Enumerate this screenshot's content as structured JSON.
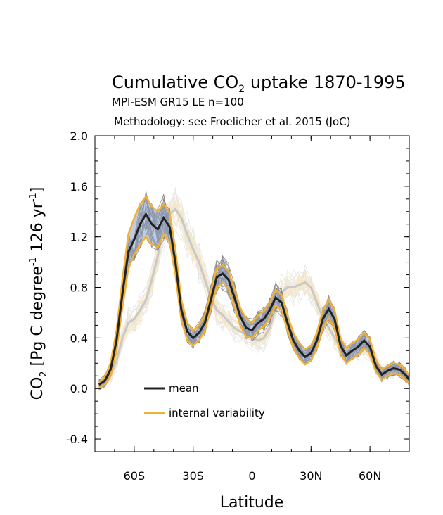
{
  "chart_data": {
    "type": "line",
    "title": "Cumulative CO",
    "title_sub": "2",
    "title_rest": " uptake 1870-1995",
    "subtitle": "MPI-ESM GR15 LE n=100",
    "methodology": "Methodology: see Froelicher et al. 2015 (JoC)",
    "xlabel": "Latitude",
    "ylabel": {
      "a": "CO",
      "a_sub": "2",
      "b": " [Pg C degree",
      "b_sup": "-1",
      "c": " 126 yr",
      "c_sup": "-1",
      "d": "]"
    },
    "xlim": [
      -80,
      80
    ],
    "ylim": [
      -0.5,
      2.0
    ],
    "x_ticks": [
      {
        "value": -60,
        "label": "60S"
      },
      {
        "value": -30,
        "label": "30S"
      },
      {
        "value": 0,
        "label": "0"
      },
      {
        "value": 30,
        "label": "30N"
      },
      {
        "value": 60,
        "label": "60N"
      }
    ],
    "y_ticks": [
      {
        "value": -0.4,
        "label": "-0.4"
      },
      {
        "value": 0.0,
        "label": "0.0"
      },
      {
        "value": 0.4,
        "label": "0.4"
      },
      {
        "value": 0.8,
        "label": "0.8"
      },
      {
        "value": 1.2,
        "label": "1.2"
      },
      {
        "value": 1.6,
        "label": "1.6"
      },
      {
        "value": 2.0,
        "label": "2.0"
      }
    ],
    "legend": [
      {
        "label": "mean",
        "color": "#222222"
      },
      {
        "label": "internal variability",
        "color": "#f2b134"
      }
    ],
    "legend_position": "bottom-left",
    "series": [
      {
        "name": "mean",
        "color": "#222222",
        "x": [
          -78,
          -75,
          -72,
          -69,
          -66,
          -63,
          -60,
          -57,
          -54,
          -51,
          -48,
          -45,
          -42,
          -39,
          -36,
          -33,
          -30,
          -27,
          -24,
          -21,
          -18,
          -15,
          -12,
          -9,
          -6,
          -3,
          0,
          3,
          6,
          9,
          12,
          15,
          18,
          21,
          24,
          27,
          30,
          33,
          36,
          39,
          42,
          45,
          48,
          51,
          54,
          57,
          60,
          63,
          66,
          69,
          72,
          75,
          78,
          80
        ],
        "y": [
          0.03,
          0.06,
          0.15,
          0.38,
          0.75,
          1.08,
          1.18,
          1.3,
          1.38,
          1.3,
          1.26,
          1.35,
          1.28,
          1.0,
          0.62,
          0.45,
          0.4,
          0.44,
          0.52,
          0.7,
          0.88,
          0.91,
          0.86,
          0.72,
          0.57,
          0.48,
          0.46,
          0.52,
          0.55,
          0.62,
          0.72,
          0.68,
          0.52,
          0.38,
          0.3,
          0.25,
          0.28,
          0.38,
          0.55,
          0.63,
          0.55,
          0.34,
          0.26,
          0.3,
          0.33,
          0.38,
          0.33,
          0.18,
          0.11,
          0.14,
          0.16,
          0.15,
          0.11,
          0.07
        ]
      },
      {
        "name": "internal variability",
        "color": "#f2b134",
        "x": [
          -78,
          -75,
          -72,
          -69,
          -66,
          -63,
          -60,
          -57,
          -54,
          -51,
          -48,
          -45,
          -42,
          -39,
          -36,
          -33,
          -30,
          -27,
          -24,
          -21,
          -18,
          -15,
          -12,
          -9,
          -6,
          -3,
          0,
          3,
          6,
          9,
          12,
          15,
          18,
          21,
          24,
          27,
          30,
          33,
          36,
          39,
          42,
          45,
          48,
          51,
          54,
          57,
          60,
          63,
          66,
          69,
          72,
          75,
          78,
          80
        ],
        "upper": [
          0.05,
          0.09,
          0.2,
          0.46,
          0.86,
          1.22,
          1.35,
          1.46,
          1.52,
          1.44,
          1.4,
          1.46,
          1.39,
          1.1,
          0.7,
          0.52,
          0.46,
          0.5,
          0.58,
          0.77,
          0.95,
          0.98,
          0.93,
          0.79,
          0.64,
          0.55,
          0.52,
          0.58,
          0.61,
          0.68,
          0.78,
          0.74,
          0.58,
          0.44,
          0.36,
          0.31,
          0.34,
          0.44,
          0.62,
          0.7,
          0.62,
          0.4,
          0.32,
          0.36,
          0.39,
          0.44,
          0.39,
          0.23,
          0.15,
          0.18,
          0.2,
          0.19,
          0.15,
          0.1
        ],
        "lower": [
          0.01,
          0.03,
          0.1,
          0.3,
          0.64,
          0.95,
          1.06,
          1.14,
          1.2,
          1.14,
          1.12,
          1.22,
          1.16,
          0.9,
          0.54,
          0.38,
          0.34,
          0.38,
          0.46,
          0.63,
          0.8,
          0.84,
          0.79,
          0.65,
          0.5,
          0.41,
          0.4,
          0.46,
          0.49,
          0.56,
          0.66,
          0.62,
          0.46,
          0.32,
          0.24,
          0.19,
          0.22,
          0.32,
          0.48,
          0.56,
          0.48,
          0.28,
          0.2,
          0.24,
          0.27,
          0.32,
          0.27,
          0.13,
          0.07,
          0.1,
          0.12,
          0.11,
          0.07,
          0.04
        ]
      },
      {
        "name": "",
        "color": "#c8c8c8",
        "x": [
          -78,
          -75,
          -72,
          -69,
          -66,
          -63,
          -60,
          -57,
          -54,
          -51,
          -48,
          -45,
          -42,
          -39,
          -36,
          -33,
          -30,
          -27,
          -24,
          -21,
          -18,
          -15,
          -12,
          -9,
          -6,
          -3,
          0,
          3,
          6,
          9,
          12,
          15,
          18,
          21,
          24,
          27,
          30,
          33,
          36,
          39,
          42,
          45,
          48,
          51,
          54,
          57,
          60,
          63,
          66,
          69,
          72,
          75,
          78,
          80
        ],
        "y": [
          0.03,
          0.05,
          0.1,
          0.22,
          0.4,
          0.52,
          0.55,
          0.62,
          0.7,
          0.86,
          1.05,
          1.28,
          1.38,
          1.42,
          1.35,
          1.22,
          1.1,
          1.0,
          0.86,
          0.72,
          0.62,
          0.58,
          0.53,
          0.48,
          0.45,
          0.43,
          0.4,
          0.38,
          0.4,
          0.48,
          0.64,
          0.76,
          0.8,
          0.8,
          0.82,
          0.84,
          0.8,
          0.68,
          0.56,
          0.48,
          0.4,
          0.32,
          0.29,
          0.3,
          0.31,
          0.33,
          0.3,
          0.2,
          0.12,
          0.13,
          0.15,
          0.14,
          0.1,
          0.06
        ]
      }
    ]
  }
}
